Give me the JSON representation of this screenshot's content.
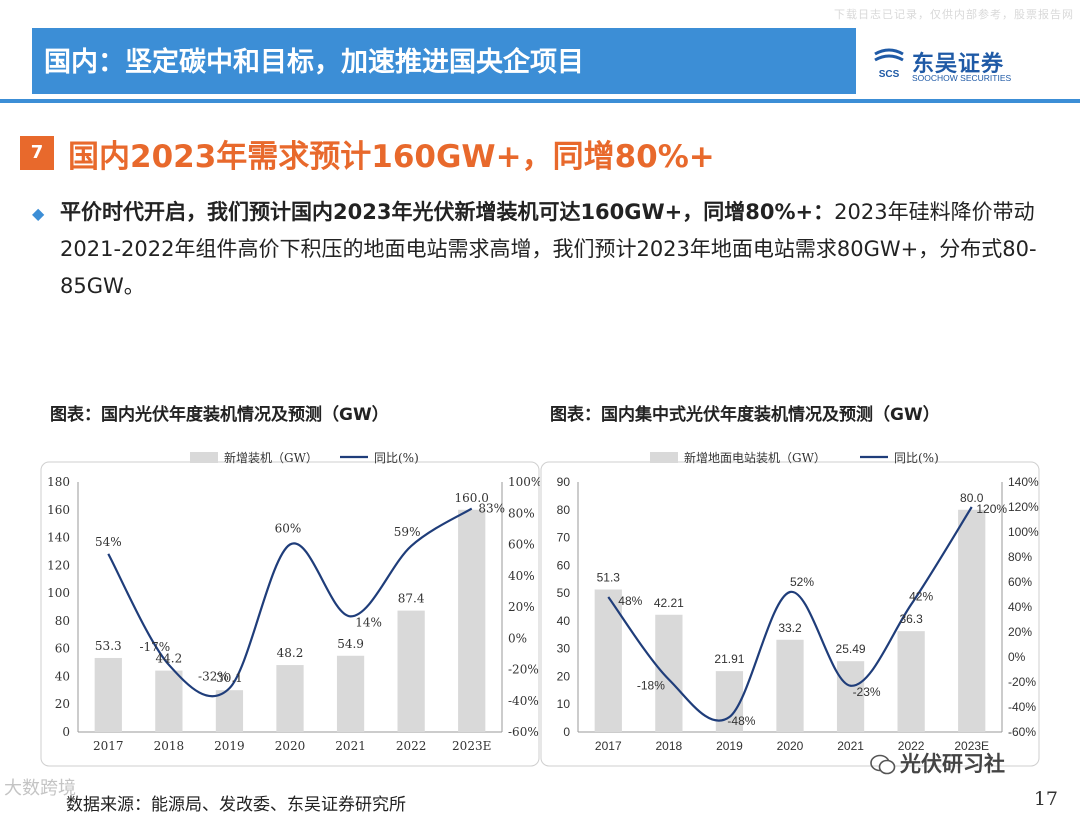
{
  "watermark_top": "下载日志已记录，仅供内部参考，股票报告网",
  "header": {
    "title": "国内：坚定碳中和目标，加速推进国央企项目",
    "logo_cn": "东吴证券",
    "logo_en": "SOOCHOW SECURITIES",
    "logo_mark": "SCS"
  },
  "section": {
    "number": "7",
    "title": "国内2023年需求预计160GW+，同增80%+"
  },
  "paragraph": {
    "lead": "平价时代开启，我们预计国内2023年光伏新增装机可达160GW+，同增80%+：",
    "body": "2023年硅料降价带动2021-2022年组件高价下积压的地面电站需求高增，我们预计2023年地面电站需求80GW+，分布式80-85GW。"
  },
  "chart_titles": {
    "left": "图表：国内光伏年度装机情况及预测（GW）",
    "right": "图表：国内集中式光伏年度装机情况及预测（GW）"
  },
  "chart_data": [
    {
      "type": "bar",
      "title": "图表：国内光伏年度装机情况及预测（GW）",
      "categories": [
        "2017",
        "2018",
        "2019",
        "2020",
        "2021",
        "2022",
        "2023E"
      ],
      "series": [
        {
          "name": "新增装机（GW）",
          "type": "bar",
          "axis": "left",
          "values": [
            53.3,
            44.2,
            30.1,
            48.2,
            54.9,
            87.4,
            160.0
          ],
          "labels": [
            "53.3",
            "44.2",
            "30.1",
            "48.2",
            "54.9",
            "87.4",
            "160.0"
          ]
        },
        {
          "name": "同比(%)",
          "type": "line",
          "axis": "right",
          "values": [
            54,
            -17,
            -32,
            60,
            14,
            59,
            83
          ],
          "labels": [
            "54%",
            "-17%",
            "-32%",
            "60%",
            "14%",
            "59%",
            "83%"
          ]
        }
      ],
      "ylim": [
        0,
        180
      ],
      "y_ticks": [
        "0",
        "20",
        "40",
        "60",
        "80",
        "100",
        "120",
        "140",
        "160",
        "180"
      ],
      "y2lim": [
        -60,
        100
      ],
      "y2_ticks": [
        "-60%",
        "-40%",
        "-20%",
        "0%",
        "20%",
        "40%",
        "60%",
        "80%",
        "100%"
      ],
      "legend_position": "top",
      "colors": {
        "bar": "#d9d9d9",
        "line": "#1f3d7a"
      }
    },
    {
      "type": "bar",
      "title": "图表：国内集中式光伏年度装机情况及预测（GW）",
      "categories": [
        "2017",
        "2018",
        "2019",
        "2020",
        "2021",
        "2022",
        "2023E"
      ],
      "series": [
        {
          "name": "新增地面电站装机（GW）",
          "type": "bar",
          "axis": "left",
          "values": [
            51.3,
            42.21,
            21.91,
            33.2,
            25.49,
            36.3,
            80.0
          ],
          "labels": [
            "51.3",
            "42.21",
            "21.91",
            "33.2",
            "25.49",
            "36.3",
            "80.0"
          ]
        },
        {
          "name": "同比(%)",
          "type": "line",
          "axis": "right",
          "values": [
            48,
            -18,
            -48,
            52,
            -23,
            42,
            120
          ],
          "labels": [
            "48%",
            "-18%",
            "-48%",
            "52%",
            "-23%",
            "42%",
            "120%"
          ]
        }
      ],
      "ylim": [
        0,
        90
      ],
      "y_ticks": [
        "0",
        "10",
        "20",
        "30",
        "40",
        "50",
        "60",
        "70",
        "80",
        "90"
      ],
      "y2lim": [
        -60,
        140
      ],
      "y2_ticks": [
        "-60%",
        "-40%",
        "-20%",
        "0%",
        "20%",
        "40%",
        "60%",
        "80%",
        "100%",
        "120%",
        "140%"
      ],
      "legend_position": "top",
      "colors": {
        "bar": "#d9d9d9",
        "line": "#1f3d7a"
      }
    }
  ],
  "footer": {
    "source": "数据来源：能源局、发改委、东吴证券研究所",
    "page_number": "17",
    "watermark_bottom": "大数跨境",
    "wechat_label": "光伏研习社"
  },
  "colors": {
    "accent_blue": "#3c8ed6",
    "accent_orange": "#e8692c",
    "logo_blue": "#1f5aa6"
  }
}
